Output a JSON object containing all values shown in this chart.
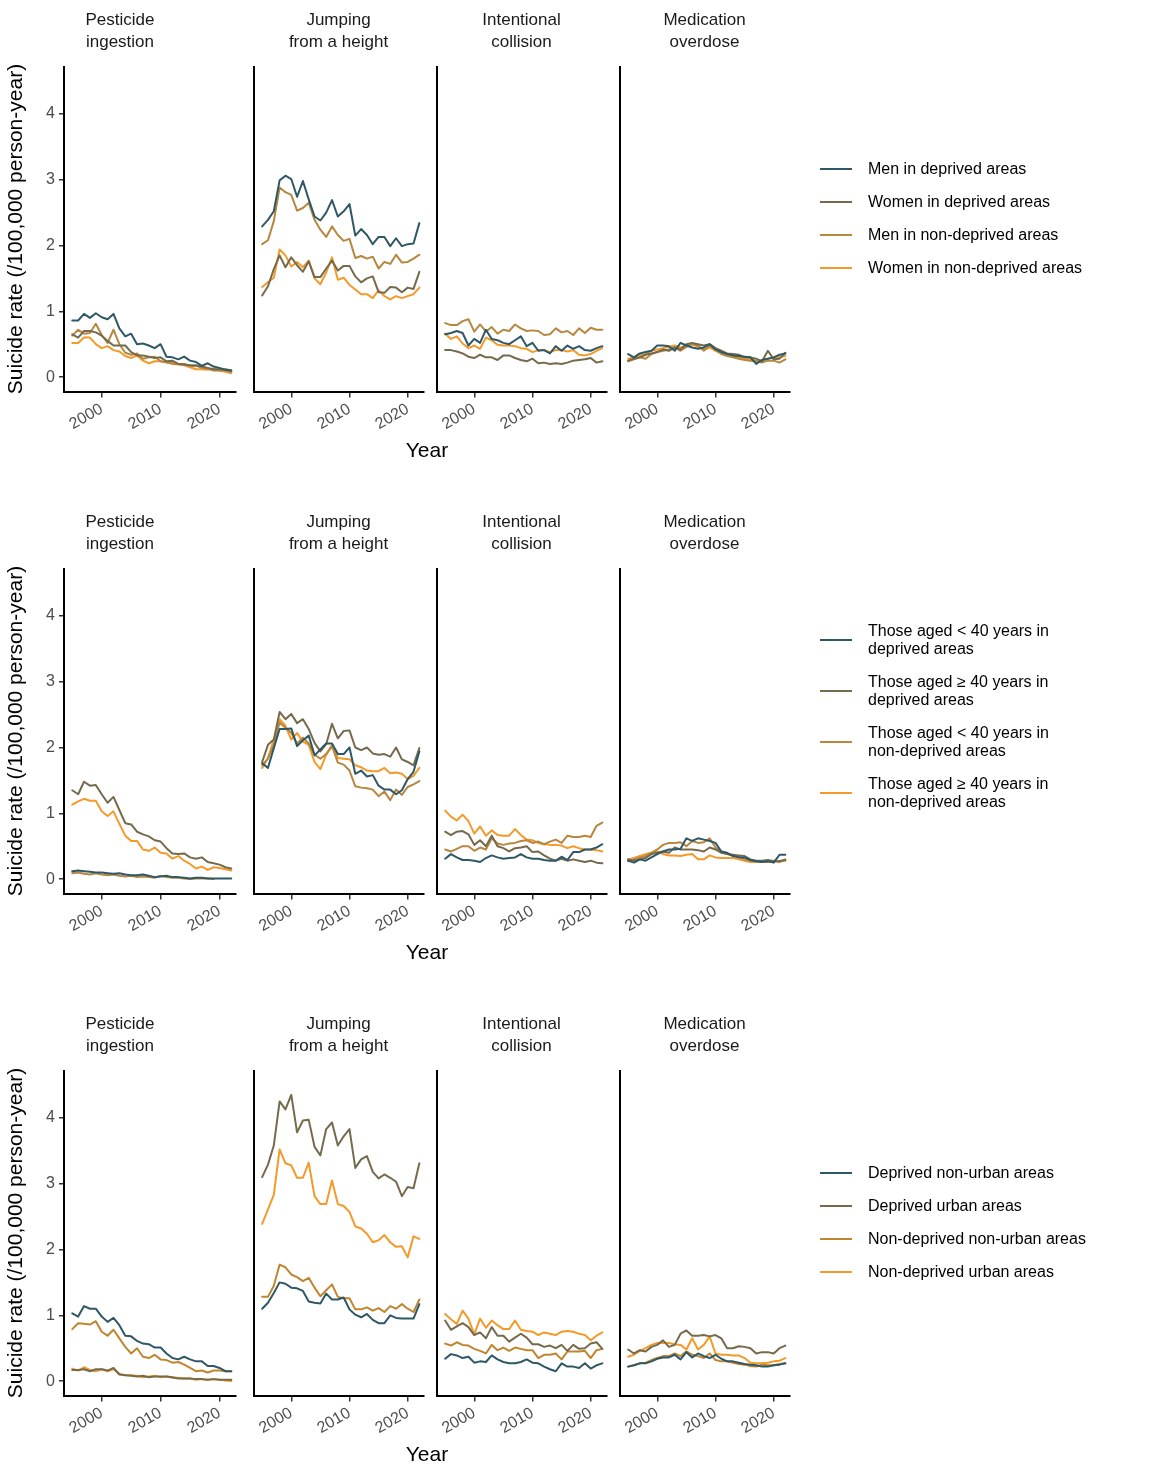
{
  "chart_data": [
    {
      "type": "line",
      "title": "Pesticide ingestion",
      "ylabel": "Suicide rate (/100,000 person-year)",
      "x": [
        1995,
        1996,
        1997,
        1998,
        1999,
        2000,
        2001,
        2002,
        2003,
        2004,
        2005,
        2006,
        2007,
        2008,
        2009,
        2010,
        2011,
        2012,
        2013,
        2014,
        2015,
        2016,
        2017,
        2018,
        2019,
        2020,
        2021,
        2022
      ],
      "xlim": [
        1993.6,
        2022.8
      ],
      "xticks": [
        2000,
        2010,
        2020
      ],
      "ylim": [
        -0.22,
        4.72
      ],
      "yticks": [
        0,
        1,
        2,
        3,
        4
      ],
      "series": [
        {
          "color": "#2f5866",
          "values": [
            0.86,
            0.86,
            0.96,
            0.9,
            0.97,
            0.91,
            0.88,
            0.96,
            0.74,
            0.62,
            0.66,
            0.5,
            0.51,
            0.48,
            0.44,
            0.5,
            0.31,
            0.3,
            0.27,
            0.31,
            0.25,
            0.23,
            0.17,
            0.21,
            0.16,
            0.14,
            0.11,
            0.1
          ]
        },
        {
          "color": "#756a4c",
          "values": [
            0.65,
            0.6,
            0.7,
            0.7,
            0.68,
            0.63,
            0.55,
            0.48,
            0.48,
            0.48,
            0.38,
            0.33,
            0.33,
            0.31,
            0.29,
            0.3,
            0.24,
            0.25,
            0.2,
            0.19,
            0.18,
            0.18,
            0.16,
            0.14,
            0.12,
            0.12,
            0.12,
            0.1
          ]
        },
        {
          "color": "#b7863f",
          "values": [
            0.63,
            0.72,
            0.66,
            0.67,
            0.81,
            0.64,
            0.52,
            0.72,
            0.5,
            0.37,
            0.34,
            0.36,
            0.28,
            0.3,
            0.31,
            0.24,
            0.22,
            0.21,
            0.2,
            0.2,
            0.17,
            0.17,
            0.14,
            0.13,
            0.1,
            0.1,
            0.1,
            0.08
          ]
        },
        {
          "color": "#f49a2a",
          "values": [
            0.52,
            0.52,
            0.6,
            0.6,
            0.5,
            0.44,
            0.47,
            0.41,
            0.39,
            0.32,
            0.29,
            0.33,
            0.25,
            0.21,
            0.24,
            0.24,
            0.23,
            0.2,
            0.19,
            0.18,
            0.15,
            0.12,
            0.12,
            0.11,
            0.13,
            0.1,
            0.08,
            0.06
          ]
        }
      ]
    },
    {
      "type": "line",
      "title": "Jumping from a height",
      "xlabel": "Year",
      "tick_labels": "x",
      "x": [
        1995,
        1996,
        1997,
        1998,
        1999,
        2000,
        2001,
        2002,
        2003,
        2004,
        2005,
        2006,
        2007,
        2008,
        2009,
        2010,
        2011,
        2012,
        2013,
        2014,
        2015,
        2016,
        2017,
        2018,
        2019,
        2020,
        2021,
        2022
      ],
      "xlim": [
        1993.6,
        2022.8
      ],
      "xticks": [
        2000,
        2010,
        2020
      ],
      "ylim": [
        -0.22,
        4.72
      ],
      "yticks": [
        0,
        1,
        2,
        3,
        4
      ],
      "series": [
        {
          "color": "#2f5866",
          "values": [
            2.29,
            2.39,
            2.52,
            2.99,
            3.06,
            3.01,
            2.74,
            2.98,
            2.7,
            2.44,
            2.38,
            2.5,
            2.69,
            2.44,
            2.52,
            2.63,
            2.15,
            2.25,
            2.16,
            2.02,
            2.13,
            2.13,
            1.99,
            2.11,
            1.99,
            2.02,
            2.03,
            2.34
          ]
        },
        {
          "color": "#756a4c",
          "values": [
            1.24,
            1.38,
            1.64,
            1.85,
            1.67,
            1.82,
            1.7,
            1.6,
            1.76,
            1.52,
            1.52,
            1.65,
            1.77,
            1.62,
            1.69,
            1.69,
            1.53,
            1.44,
            1.5,
            1.53,
            1.29,
            1.28,
            1.37,
            1.36,
            1.29,
            1.36,
            1.34,
            1.6
          ]
        },
        {
          "color": "#b7863f",
          "values": [
            2.02,
            2.08,
            2.37,
            2.88,
            2.81,
            2.77,
            2.53,
            2.57,
            2.65,
            2.39,
            2.24,
            2.13,
            2.29,
            2.16,
            2.07,
            2.1,
            1.81,
            1.84,
            1.8,
            1.83,
            1.65,
            1.75,
            1.72,
            1.86,
            1.74,
            1.75,
            1.8,
            1.86
          ]
        },
        {
          "color": "#f49a2a",
          "values": [
            1.37,
            1.44,
            1.51,
            1.94,
            1.85,
            1.68,
            1.75,
            1.67,
            1.77,
            1.5,
            1.41,
            1.59,
            1.82,
            1.48,
            1.51,
            1.4,
            1.33,
            1.26,
            1.26,
            1.2,
            1.32,
            1.23,
            1.18,
            1.23,
            1.2,
            1.23,
            1.26,
            1.36
          ]
        }
      ]
    },
    {
      "type": "line",
      "title": "Intentional collision",
      "tick_labels": "x",
      "x": [
        1995,
        1996,
        1997,
        1998,
        1999,
        2000,
        2001,
        2002,
        2003,
        2004,
        2005,
        2006,
        2007,
        2008,
        2009,
        2010,
        2011,
        2012,
        2013,
        2014,
        2015,
        2016,
        2017,
        2018,
        2019,
        2020,
        2021,
        2022
      ],
      "xlim": [
        1993.6,
        2022.8
      ],
      "xticks": [
        2000,
        2010,
        2020
      ],
      "ylim": [
        -0.22,
        4.72
      ],
      "yticks": [
        0,
        1,
        2,
        3,
        4
      ],
      "series": [
        {
          "color": "#2f5866",
          "values": [
            0.65,
            0.67,
            0.7,
            0.67,
            0.48,
            0.58,
            0.52,
            0.72,
            0.58,
            0.56,
            0.52,
            0.5,
            0.56,
            0.62,
            0.47,
            0.52,
            0.4,
            0.41,
            0.36,
            0.47,
            0.4,
            0.48,
            0.43,
            0.47,
            0.41,
            0.4,
            0.44,
            0.47
          ]
        },
        {
          "color": "#756a4c",
          "values": [
            0.41,
            0.41,
            0.39,
            0.36,
            0.31,
            0.29,
            0.34,
            0.3,
            0.3,
            0.26,
            0.33,
            0.33,
            0.29,
            0.26,
            0.24,
            0.28,
            0.21,
            0.22,
            0.2,
            0.21,
            0.2,
            0.22,
            0.25,
            0.26,
            0.27,
            0.29,
            0.22,
            0.24
          ]
        },
        {
          "color": "#b7863f",
          "values": [
            0.82,
            0.79,
            0.79,
            0.85,
            0.88,
            0.69,
            0.8,
            0.69,
            0.76,
            0.66,
            0.72,
            0.7,
            0.8,
            0.74,
            0.7,
            0.71,
            0.7,
            0.64,
            0.65,
            0.74,
            0.68,
            0.7,
            0.64,
            0.74,
            0.67,
            0.75,
            0.72,
            0.72
          ]
        },
        {
          "color": "#f49a2a",
          "values": [
            0.66,
            0.58,
            0.62,
            0.51,
            0.44,
            0.48,
            0.43,
            0.6,
            0.56,
            0.49,
            0.48,
            0.48,
            0.47,
            0.44,
            0.43,
            0.38,
            0.41,
            0.41,
            0.38,
            0.41,
            0.41,
            0.39,
            0.41,
            0.34,
            0.33,
            0.35,
            0.4,
            0.44
          ]
        }
      ]
    },
    {
      "type": "line",
      "title": "Medication overdose",
      "tick_labels": "x",
      "legend": "right",
      "x": [
        1995,
        1996,
        1997,
        1998,
        1999,
        2000,
        2001,
        2002,
        2003,
        2004,
        2005,
        2006,
        2007,
        2008,
        2009,
        2010,
        2011,
        2012,
        2013,
        2014,
        2015,
        2016,
        2017,
        2018,
        2019,
        2020,
        2021,
        2022
      ],
      "xlim": [
        1993.6,
        2022.8
      ],
      "xticks": [
        2000,
        2010,
        2020
      ],
      "ylim": [
        -0.22,
        4.72
      ],
      "yticks": [
        0,
        1,
        2,
        3,
        4
      ],
      "series": [
        {
          "name": "Men in deprived areas",
          "color": "#2f5866",
          "values": [
            0.35,
            0.3,
            0.36,
            0.38,
            0.4,
            0.48,
            0.48,
            0.47,
            0.4,
            0.52,
            0.48,
            0.45,
            0.43,
            0.45,
            0.5,
            0.42,
            0.38,
            0.35,
            0.33,
            0.32,
            0.31,
            0.3,
            0.2,
            0.26,
            0.28,
            0.3,
            0.34,
            0.36
          ]
        },
        {
          "name": "Women in deprived areas",
          "color": "#756a4c",
          "values": [
            0.25,
            0.28,
            0.3,
            0.34,
            0.36,
            0.38,
            0.42,
            0.4,
            0.45,
            0.42,
            0.5,
            0.52,
            0.5,
            0.48,
            0.5,
            0.44,
            0.4,
            0.36,
            0.35,
            0.34,
            0.3,
            0.3,
            0.28,
            0.24,
            0.4,
            0.27,
            0.28,
            0.37
          ]
        },
        {
          "name": "Men in non-deprived areas",
          "color": "#b7863f",
          "values": [
            0.24,
            0.27,
            0.3,
            0.28,
            0.35,
            0.38,
            0.4,
            0.42,
            0.45,
            0.4,
            0.46,
            0.5,
            0.48,
            0.4,
            0.48,
            0.42,
            0.35,
            0.32,
            0.3,
            0.28,
            0.26,
            0.25,
            0.24,
            0.22,
            0.25,
            0.25,
            0.22,
            0.27
          ]
        },
        {
          "name": "Women in non-deprived areas",
          "color": "#f49a2a",
          "values": [
            0.28,
            0.3,
            0.33,
            0.35,
            0.4,
            0.42,
            0.44,
            0.46,
            0.48,
            0.45,
            0.48,
            0.5,
            0.46,
            0.42,
            0.45,
            0.4,
            0.36,
            0.33,
            0.32,
            0.3,
            0.28,
            0.27,
            0.25,
            0.26,
            0.28,
            0.3,
            0.3,
            0.32
          ]
        }
      ]
    },
    {
      "type": "line",
      "title": "Pesticide ingestion",
      "ylabel": "Suicide rate (/100,000 person-year)",
      "x": [
        1995,
        1996,
        1997,
        1998,
        1999,
        2000,
        2001,
        2002,
        2003,
        2004,
        2005,
        2006,
        2007,
        2008,
        2009,
        2010,
        2011,
        2012,
        2013,
        2014,
        2015,
        2016,
        2017,
        2018,
        2019,
        2020,
        2021,
        2022
      ],
      "xlim": [
        1993.6,
        2022.8
      ],
      "xticks": [
        2000,
        2010,
        2020
      ],
      "ylim": [
        -0.22,
        4.72
      ],
      "yticks": [
        0,
        1,
        2,
        3,
        4
      ],
      "series": [
        {
          "color": "#2f5866",
          "values": [
            0.12,
            0.13,
            0.12,
            0.11,
            0.1,
            0.1,
            0.09,
            0.08,
            0.09,
            0.07,
            0.06,
            0.06,
            0.07,
            0.05,
            0.03,
            0.04,
            0.05,
            0.03,
            0.03,
            0.02,
            0.01,
            0.02,
            0.02,
            0.01,
            0.01,
            0.01,
            0.01,
            0.01
          ]
        },
        {
          "color": "#756a4c",
          "values": [
            1.35,
            1.29,
            1.48,
            1.42,
            1.43,
            1.29,
            1.16,
            1.25,
            1.05,
            0.85,
            0.83,
            0.72,
            0.68,
            0.65,
            0.59,
            0.57,
            0.47,
            0.39,
            0.38,
            0.39,
            0.33,
            0.31,
            0.33,
            0.26,
            0.24,
            0.22,
            0.18,
            0.16
          ]
        },
        {
          "color": "#b7863f",
          "values": [
            0.09,
            0.1,
            0.08,
            0.07,
            0.09,
            0.07,
            0.06,
            0.07,
            0.05,
            0.04,
            0.05,
            0.03,
            0.04,
            0.03,
            0.02,
            0.05,
            0.03,
            0.02,
            0.02,
            0.01,
            0.0,
            0.01,
            0.01,
            0.01,
            0.0,
            null,
            null,
            null
          ]
        },
        {
          "color": "#f49a2a",
          "values": [
            1.13,
            1.18,
            1.22,
            1.19,
            1.19,
            1.03,
            0.96,
            1.03,
            0.84,
            0.66,
            0.58,
            0.58,
            0.45,
            0.43,
            0.48,
            0.4,
            0.39,
            0.31,
            0.35,
            0.28,
            0.23,
            0.16,
            0.19,
            0.14,
            0.18,
            0.17,
            0.15,
            0.13
          ]
        }
      ]
    },
    {
      "type": "line",
      "title": "Jumping from a height",
      "xlabel": "Year",
      "tick_labels": "x",
      "x": [
        1995,
        1996,
        1997,
        1998,
        1999,
        2000,
        2001,
        2002,
        2003,
        2004,
        2005,
        2006,
        2007,
        2008,
        2009,
        2010,
        2011,
        2012,
        2013,
        2014,
        2015,
        2016,
        2017,
        2018,
        2019,
        2020,
        2021,
        2022
      ],
      "xlim": [
        1993.6,
        2022.8
      ],
      "xticks": [
        2000,
        2010,
        2020
      ],
      "ylim": [
        -0.22,
        4.72
      ],
      "yticks": [
        0,
        1,
        2,
        3,
        4
      ],
      "series": [
        {
          "color": "#2f5866",
          "values": [
            1.76,
            1.69,
            1.99,
            2.28,
            2.28,
            2.29,
            2.02,
            2.11,
            2.18,
            1.88,
            1.97,
            2.06,
            2.06,
            1.9,
            1.9,
            2.0,
            1.6,
            1.65,
            1.56,
            1.58,
            1.42,
            1.36,
            1.36,
            1.29,
            1.35,
            1.52,
            1.63,
            1.94
          ]
        },
        {
          "color": "#756a4c",
          "values": [
            1.78,
            2.04,
            2.12,
            2.54,
            2.43,
            2.51,
            2.37,
            2.43,
            2.28,
            2.07,
            1.94,
            2.05,
            2.36,
            2.14,
            2.25,
            2.26,
            2.0,
            1.96,
            2.0,
            1.91,
            1.89,
            1.9,
            1.86,
            2.0,
            1.82,
            1.78,
            1.73,
            1.99
          ]
        },
        {
          "color": "#b7863f",
          "values": [
            1.73,
            1.83,
            2.04,
            2.38,
            2.3,
            2.22,
            2.06,
            2.15,
            2.06,
            1.89,
            1.83,
            1.9,
            2.02,
            1.77,
            1.74,
            1.65,
            1.41,
            1.39,
            1.38,
            1.36,
            1.26,
            1.33,
            1.2,
            1.36,
            1.28,
            1.4,
            1.44,
            1.49
          ]
        },
        {
          "color": "#f49a2a",
          "values": [
            1.69,
            1.84,
            2.12,
            2.43,
            2.33,
            2.12,
            2.22,
            2.09,
            2.04,
            1.78,
            1.67,
            1.89,
            2.04,
            1.84,
            1.83,
            1.82,
            1.73,
            1.7,
            1.65,
            1.64,
            1.64,
            1.69,
            1.61,
            1.62,
            1.6,
            1.52,
            1.57,
            1.69
          ]
        }
      ]
    },
    {
      "type": "line",
      "title": "Intentional collision",
      "tick_labels": "x",
      "x": [
        1995,
        1996,
        1997,
        1998,
        1999,
        2000,
        2001,
        2002,
        2003,
        2004,
        2005,
        2006,
        2007,
        2008,
        2009,
        2010,
        2011,
        2012,
        2013,
        2014,
        2015,
        2016,
        2017,
        2018,
        2019,
        2020,
        2021,
        2022
      ],
      "xlim": [
        1993.6,
        2022.8
      ],
      "xticks": [
        2000,
        2010,
        2020
      ],
      "ylim": [
        -0.22,
        4.72
      ],
      "yticks": [
        0,
        1,
        2,
        3,
        4
      ],
      "series": [
        {
          "color": "#2f5866",
          "values": [
            0.31,
            0.38,
            0.33,
            0.29,
            0.29,
            0.28,
            0.26,
            0.32,
            0.36,
            0.33,
            0.31,
            0.32,
            0.33,
            0.38,
            0.33,
            0.31,
            0.31,
            0.29,
            0.28,
            0.28,
            0.34,
            0.29,
            0.41,
            0.41,
            0.45,
            0.45,
            0.48,
            0.53
          ]
        },
        {
          "color": "#756a4c",
          "values": [
            0.72,
            0.67,
            0.72,
            0.73,
            0.68,
            0.52,
            0.59,
            0.5,
            0.66,
            0.5,
            0.47,
            0.42,
            0.47,
            0.48,
            0.5,
            0.41,
            0.42,
            0.36,
            0.31,
            0.28,
            0.31,
            0.28,
            0.3,
            0.28,
            0.26,
            0.28,
            0.25,
            0.24
          ]
        },
        {
          "color": "#b7863f",
          "values": [
            0.45,
            0.42,
            0.46,
            0.5,
            0.5,
            0.43,
            0.48,
            0.45,
            0.62,
            0.54,
            0.52,
            0.54,
            0.55,
            0.58,
            0.59,
            0.55,
            0.57,
            0.53,
            0.57,
            0.6,
            0.55,
            0.66,
            0.64,
            0.64,
            0.66,
            0.64,
            0.81,
            0.86
          ]
        },
        {
          "color": "#f49a2a",
          "values": [
            1.04,
            0.95,
            0.89,
            0.98,
            0.88,
            0.69,
            0.8,
            0.66,
            0.74,
            0.67,
            0.66,
            0.66,
            0.76,
            0.67,
            0.6,
            0.59,
            0.55,
            0.53,
            0.52,
            0.52,
            0.51,
            0.47,
            0.5,
            0.47,
            0.45,
            0.45,
            0.44,
            0.42
          ]
        }
      ]
    },
    {
      "type": "line",
      "title": "Medication overdose",
      "tick_labels": "x",
      "legend": "right",
      "x": [
        1995,
        1996,
        1997,
        1998,
        1999,
        2000,
        2001,
        2002,
        2003,
        2004,
        2005,
        2006,
        2007,
        2008,
        2009,
        2010,
        2011,
        2012,
        2013,
        2014,
        2015,
        2016,
        2017,
        2018,
        2019,
        2020,
        2021,
        2022
      ],
      "xlim": [
        1993.6,
        2022.8
      ],
      "xticks": [
        2000,
        2010,
        2020
      ],
      "ylim": [
        -0.22,
        4.72
      ],
      "yticks": [
        0,
        1,
        2,
        3,
        4
      ],
      "series": [
        {
          "name": "Those aged < 40 years in deprived areas",
          "color": "#2f5866",
          "values": [
            0.28,
            0.25,
            0.3,
            0.28,
            0.33,
            0.38,
            0.42,
            0.45,
            0.45,
            0.46,
            0.62,
            0.58,
            0.62,
            0.6,
            0.58,
            0.55,
            0.42,
            0.4,
            0.35,
            0.33,
            0.33,
            0.29,
            0.27,
            0.26,
            0.27,
            0.25,
            0.37,
            0.37
          ]
        },
        {
          "name": "Those aged ≥ 40 years in deprived areas",
          "color": "#756a4c",
          "values": [
            0.3,
            0.28,
            0.3,
            0.32,
            0.38,
            0.4,
            0.42,
            0.4,
            0.48,
            0.45,
            0.45,
            0.45,
            0.44,
            0.42,
            0.48,
            0.45,
            0.4,
            0.38,
            0.37,
            0.36,
            0.35,
            0.3,
            0.28,
            0.28,
            0.29,
            0.27,
            0.27,
            0.29
          ]
        },
        {
          "name": "Those aged < 40 years in non-deprived areas",
          "color": "#b7863f",
          "values": [
            0.27,
            0.3,
            0.33,
            0.35,
            0.4,
            0.45,
            0.52,
            0.55,
            0.55,
            0.56,
            0.5,
            0.58,
            0.55,
            0.56,
            0.62,
            0.48,
            0.42,
            0.38,
            0.36,
            0.34,
            0.3,
            0.28,
            0.27,
            0.26,
            0.27,
            0.28,
            0.26,
            0.3
          ]
        },
        {
          "name": "Those aged ≥ 40 years in non-deprived areas",
          "color": "#f49a2a",
          "values": [
            0.3,
            0.32,
            0.35,
            0.38,
            0.4,
            0.42,
            0.38,
            0.36,
            0.36,
            0.35,
            0.37,
            0.38,
            0.3,
            0.3,
            0.36,
            0.33,
            0.32,
            0.32,
            0.32,
            0.3,
            0.28,
            0.26,
            0.26,
            0.27,
            0.26,
            0.27,
            0.28,
            0.28
          ]
        }
      ]
    },
    {
      "type": "line",
      "title": "Pesticide ingestion",
      "ylabel": "Suicide rate (/100,000 person-year)",
      "x": [
        1995,
        1996,
        1997,
        1998,
        1999,
        2000,
        2001,
        2002,
        2003,
        2004,
        2005,
        2006,
        2007,
        2008,
        2009,
        2010,
        2011,
        2012,
        2013,
        2014,
        2015,
        2016,
        2017,
        2018,
        2019,
        2020,
        2021,
        2022
      ],
      "xlim": [
        1993.6,
        2022.8
      ],
      "xticks": [
        2000,
        2010,
        2020
      ],
      "ylim": [
        -0.22,
        4.72
      ],
      "yticks": [
        0,
        1,
        2,
        3,
        4
      ],
      "series": [
        {
          "color": "#2f5866",
          "values": [
            1.03,
            0.98,
            1.14,
            1.1,
            1.1,
            0.98,
            0.9,
            0.96,
            0.85,
            0.69,
            0.68,
            0.61,
            0.57,
            0.56,
            0.51,
            0.51,
            0.42,
            0.35,
            0.33,
            0.37,
            0.33,
            0.3,
            0.3,
            0.23,
            0.23,
            0.2,
            0.15,
            0.15
          ]
        },
        {
          "color": "#756a4c",
          "values": [
            0.17,
            0.17,
            0.18,
            0.15,
            0.18,
            0.18,
            0.16,
            0.2,
            0.1,
            0.09,
            0.08,
            0.07,
            0.08,
            0.06,
            0.07,
            0.07,
            0.07,
            0.06,
            0.04,
            0.04,
            0.04,
            0.03,
            0.03,
            0.02,
            0.03,
            0.02,
            0.02,
            0.02
          ]
        },
        {
          "color": "#c0862f",
          "values": [
            0.79,
            0.88,
            0.87,
            0.86,
            0.91,
            0.75,
            0.69,
            0.78,
            0.65,
            0.52,
            0.42,
            0.5,
            0.37,
            0.35,
            0.4,
            0.33,
            0.32,
            0.28,
            0.29,
            0.25,
            0.2,
            0.15,
            0.16,
            0.13,
            0.16,
            0.16,
            0.15,
            0.15
          ]
        },
        {
          "color": "#f49a2a",
          "values": [
            0.19,
            0.16,
            0.21,
            0.17,
            0.15,
            0.18,
            0.15,
            0.18,
            0.11,
            0.09,
            0.09,
            0.08,
            0.06,
            0.07,
            0.08,
            0.06,
            0.07,
            0.05,
            0.05,
            0.04,
            0.04,
            0.02,
            0.03,
            0.02,
            0.03,
            0.02,
            0.01,
            0.0
          ]
        }
      ]
    },
    {
      "type": "line",
      "title": "Jumping from a height",
      "xlabel": "Year",
      "tick_labels": "x",
      "x": [
        1995,
        1996,
        1997,
        1998,
        1999,
        2000,
        2001,
        2002,
        2003,
        2004,
        2005,
        2006,
        2007,
        2008,
        2009,
        2010,
        2011,
        2012,
        2013,
        2014,
        2015,
        2016,
        2017,
        2018,
        2019,
        2020,
        2021,
        2022
      ],
      "xlim": [
        1993.6,
        2022.8
      ],
      "xticks": [
        2000,
        2010,
        2020
      ],
      "ylim": [
        -0.22,
        4.72
      ],
      "yticks": [
        0,
        1,
        2,
        3,
        4
      ],
      "series": [
        {
          "color": "#2f5866",
          "values": [
            1.1,
            1.19,
            1.34,
            1.5,
            1.48,
            1.42,
            1.41,
            1.37,
            1.21,
            1.19,
            1.18,
            1.33,
            1.24,
            1.24,
            1.27,
            1.09,
            1.01,
            0.97,
            1.02,
            0.93,
            0.88,
            0.88,
            1.0,
            0.96,
            0.95,
            0.95,
            0.95,
            1.17
          ]
        },
        {
          "color": "#756a4c",
          "values": [
            3.1,
            3.29,
            3.58,
            4.25,
            4.13,
            4.35,
            3.78,
            3.96,
            3.97,
            3.56,
            3.43,
            3.83,
            3.93,
            3.58,
            3.72,
            3.83,
            3.24,
            3.37,
            3.42,
            3.18,
            3.08,
            3.14,
            3.09,
            3.03,
            2.81,
            2.95,
            2.93,
            3.31
          ]
        },
        {
          "color": "#c0862f",
          "values": [
            1.28,
            1.28,
            1.45,
            1.77,
            1.73,
            1.62,
            1.58,
            1.52,
            1.57,
            1.42,
            1.29,
            1.38,
            1.47,
            1.28,
            1.26,
            1.26,
            1.09,
            1.09,
            1.12,
            1.07,
            1.11,
            1.05,
            1.14,
            1.1,
            1.17,
            1.1,
            1.05,
            1.24
          ]
        },
        {
          "color": "#f49a2a",
          "values": [
            2.39,
            2.61,
            2.83,
            3.52,
            3.31,
            3.28,
            3.09,
            3.09,
            3.32,
            2.81,
            2.69,
            2.69,
            3.05,
            2.69,
            2.66,
            2.57,
            2.35,
            2.32,
            2.24,
            2.11,
            2.14,
            2.22,
            2.11,
            2.04,
            2.05,
            1.88,
            2.2,
            2.16
          ]
        }
      ]
    },
    {
      "type": "line",
      "title": "Intentional collision",
      "tick_labels": "x",
      "x": [
        1995,
        1996,
        1997,
        1998,
        1999,
        2000,
        2001,
        2002,
        2003,
        2004,
        2005,
        2006,
        2007,
        2008,
        2009,
        2010,
        2011,
        2012,
        2013,
        2014,
        2015,
        2016,
        2017,
        2018,
        2019,
        2020,
        2021,
        2022
      ],
      "xlim": [
        1993.6,
        2022.8
      ],
      "xticks": [
        2000,
        2010,
        2020
      ],
      "ylim": [
        -0.22,
        4.72
      ],
      "yticks": [
        0,
        1,
        2,
        3,
        4
      ],
      "series": [
        {
          "color": "#2f5866",
          "values": [
            0.34,
            0.41,
            0.39,
            0.35,
            0.37,
            0.28,
            0.3,
            0.29,
            0.39,
            0.33,
            0.29,
            0.27,
            0.27,
            0.29,
            0.33,
            0.28,
            0.27,
            0.22,
            0.18,
            0.15,
            0.27,
            0.22,
            0.22,
            0.2,
            0.27,
            0.19,
            0.24,
            0.27
          ]
        },
        {
          "color": "#756a4c",
          "values": [
            0.92,
            0.78,
            0.83,
            0.88,
            0.82,
            0.7,
            0.74,
            0.65,
            0.82,
            0.69,
            0.69,
            0.6,
            0.66,
            0.72,
            0.66,
            0.56,
            0.56,
            0.52,
            0.54,
            0.5,
            0.55,
            0.46,
            0.55,
            0.49,
            0.5,
            0.57,
            0.59,
            0.49
          ]
        },
        {
          "color": "#c0862f",
          "values": [
            0.57,
            0.54,
            0.59,
            0.55,
            0.54,
            0.49,
            0.46,
            0.42,
            0.55,
            0.47,
            0.51,
            0.46,
            0.51,
            0.49,
            0.47,
            0.47,
            0.35,
            0.4,
            0.4,
            0.42,
            0.33,
            0.45,
            0.45,
            0.45,
            0.46,
            0.35,
            0.47,
            0.49
          ]
        },
        {
          "color": "#f49a2a",
          "values": [
            1.02,
            0.94,
            0.87,
            1.07,
            0.95,
            0.71,
            0.95,
            0.81,
            0.92,
            0.85,
            0.79,
            0.79,
            0.92,
            0.78,
            0.76,
            0.75,
            0.7,
            0.74,
            0.72,
            0.7,
            0.75,
            0.76,
            0.75,
            0.72,
            0.7,
            0.62,
            0.69,
            0.74
          ]
        }
      ]
    },
    {
      "type": "line",
      "title": "Medication overdose",
      "tick_labels": "x",
      "legend": "right",
      "x": [
        1995,
        1996,
        1997,
        1998,
        1999,
        2000,
        2001,
        2002,
        2003,
        2004,
        2005,
        2006,
        2007,
        2008,
        2009,
        2010,
        2011,
        2012,
        2013,
        2014,
        2015,
        2016,
        2017,
        2018,
        2019,
        2020,
        2021,
        2022
      ],
      "xlim": [
        1993.6,
        2022.8
      ],
      "xticks": [
        2000,
        2010,
        2020
      ],
      "ylim": [
        -0.22,
        4.72
      ],
      "yticks": [
        0,
        1,
        2,
        3,
        4
      ],
      "series": [
        {
          "name": "Deprived non-urban areas",
          "color": "#2f5866",
          "values": [
            0.22,
            0.24,
            0.27,
            0.27,
            0.3,
            0.34,
            0.36,
            0.36,
            0.4,
            0.33,
            0.44,
            0.36,
            0.42,
            0.38,
            0.35,
            0.4,
            0.34,
            0.3,
            0.3,
            0.28,
            0.26,
            0.25,
            0.24,
            0.22,
            0.22,
            0.24,
            0.25,
            0.27
          ]
        },
        {
          "name": "Deprived urban areas",
          "color": "#756a4c",
          "values": [
            0.48,
            0.42,
            0.47,
            0.45,
            0.52,
            0.55,
            0.62,
            0.52,
            0.55,
            0.72,
            0.77,
            0.69,
            0.69,
            0.7,
            0.68,
            0.7,
            0.65,
            0.5,
            0.5,
            0.53,
            0.52,
            0.5,
            0.42,
            0.44,
            0.44,
            0.42,
            0.5,
            0.54
          ]
        },
        {
          "name": "Non-deprived non-urban areas",
          "color": "#c0862f",
          "values": [
            0.22,
            0.24,
            0.27,
            0.28,
            0.32,
            0.35,
            0.38,
            0.38,
            0.42,
            0.38,
            0.45,
            0.4,
            0.38,
            0.35,
            0.42,
            0.32,
            0.3,
            0.3,
            0.28,
            0.26,
            0.25,
            0.23,
            0.22,
            0.25,
            0.24,
            0.24,
            0.26,
            0.27
          ]
        },
        {
          "name": "Non-deprived urban areas",
          "color": "#f49a2a",
          "values": [
            0.37,
            0.4,
            0.46,
            0.5,
            0.55,
            0.58,
            0.58,
            0.58,
            0.56,
            0.55,
            0.48,
            0.65,
            0.48,
            0.55,
            0.68,
            0.42,
            0.4,
            0.4,
            0.39,
            0.39,
            0.35,
            0.28,
            0.27,
            0.27,
            0.28,
            0.3,
            0.31,
            0.35
          ]
        }
      ]
    }
  ]
}
